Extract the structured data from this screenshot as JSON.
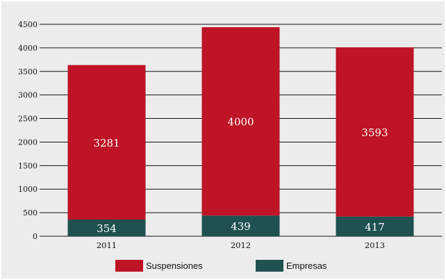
{
  "chart_data": {
    "type": "bar",
    "stacked": true,
    "categories": [
      "2011",
      "2012",
      "2013"
    ],
    "series": [
      {
        "name": "Empresas",
        "values": [
          354,
          439,
          417
        ],
        "color": "#1e5150"
      },
      {
        "name": "Suspensiones",
        "values": [
          3281,
          4000,
          3593
        ],
        "color": "#be1425"
      }
    ],
    "ylim": [
      0,
      4500
    ],
    "yticks": [
      0,
      500,
      1000,
      1500,
      2000,
      2500,
      3000,
      3500,
      4000,
      4500
    ],
    "grid": true,
    "legend_position": "bottom-center",
    "background": "#ececec"
  }
}
